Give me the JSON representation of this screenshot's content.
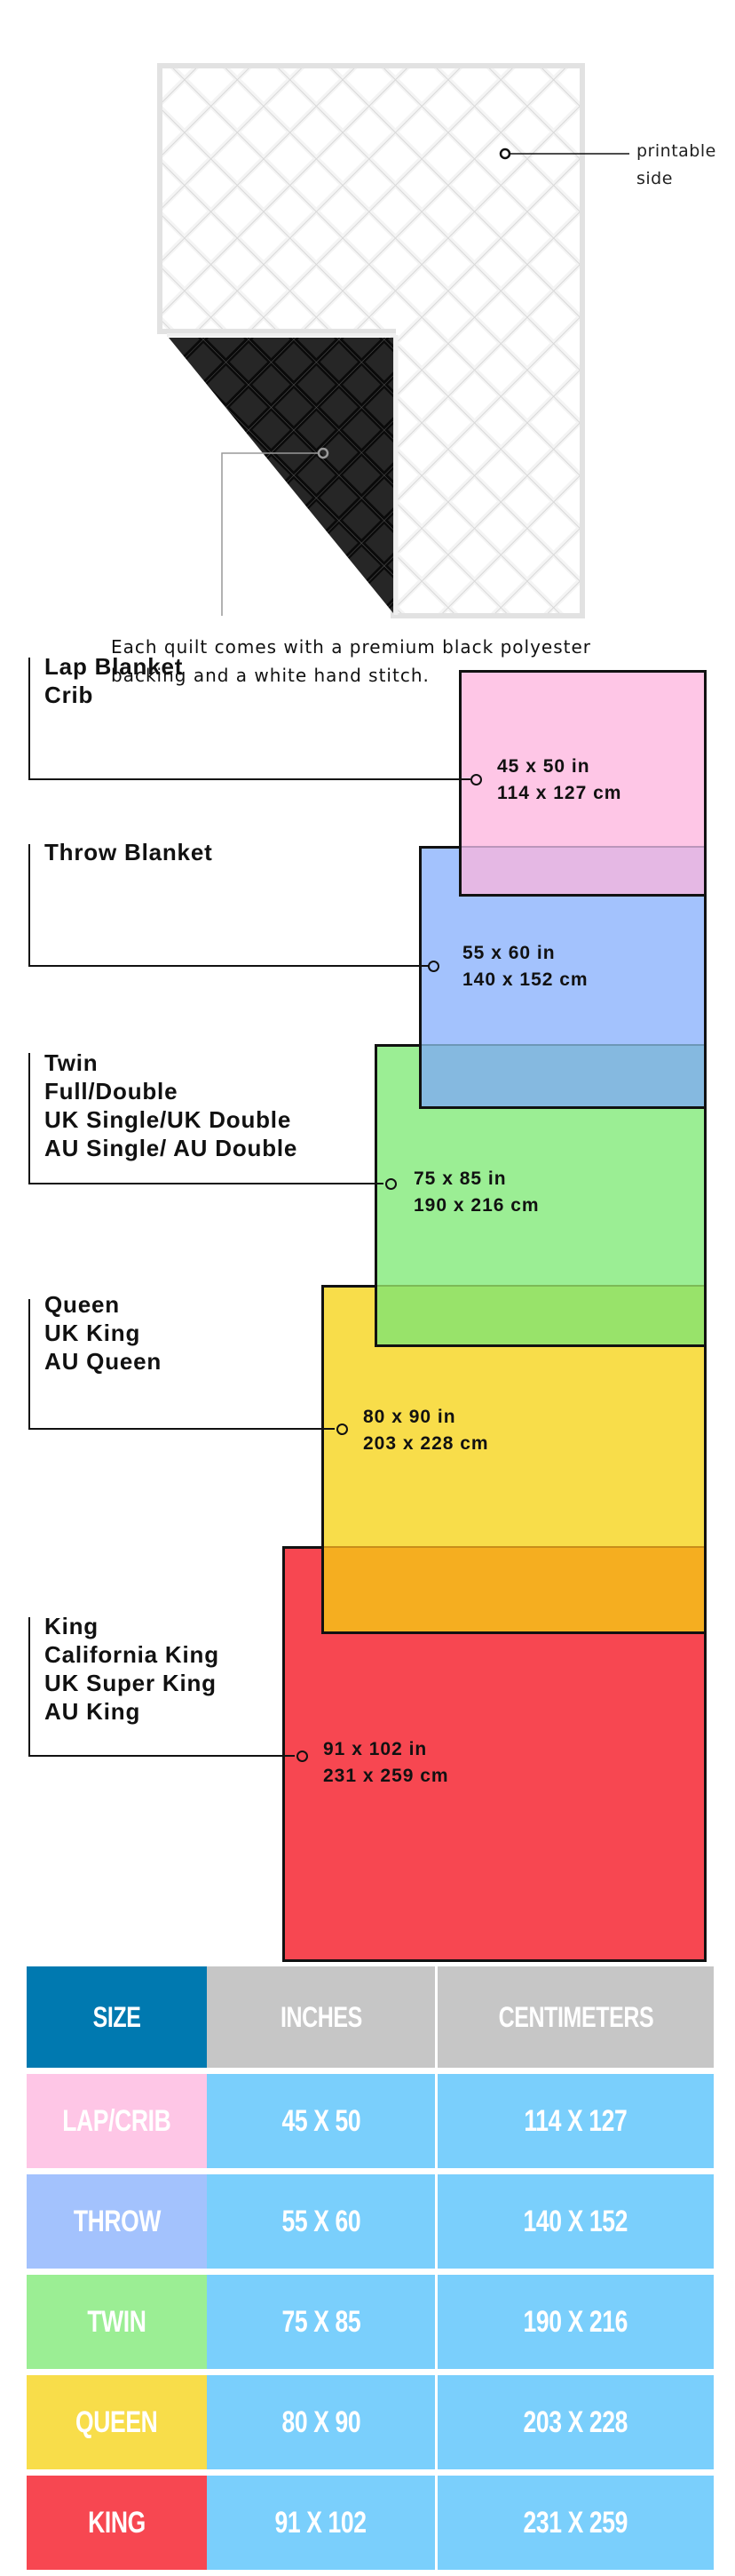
{
  "quilt": {
    "printable_label": "printable\nside",
    "caption_line1": "Each quilt comes with a premium black polyester",
    "caption_line2": "backing and a white hand stitch."
  },
  "sizes": [
    {
      "label": "Lap Blanket\nCrib",
      "inches": "45 x 50 in",
      "cm": "114 x 127 cm",
      "color": "#fec6e6"
    },
    {
      "label": "Throw Blanket",
      "inches": "55 x 60 in",
      "cm": "140 x 152 cm",
      "color": "#a3c2fd"
    },
    {
      "label": "Twin\nFull/Double\nUK Single/UK Double\nAU Single/ AU Double",
      "inches": "75 x 85 in",
      "cm": "190 x 216 cm",
      "color": "#9bee94"
    },
    {
      "label": "Queen\nUK King\nAU Queen",
      "inches": "80 x 90 in",
      "cm": "203 x 228 cm",
      "color": "#f8dd4a"
    },
    {
      "label": "King\nCalifornia King\nUK Super King\nAU King",
      "inches": "91 x 102 in",
      "cm": "231 x 259 cm",
      "color": "#f74751"
    }
  ],
  "overlap_colors": [
    "#e5b8e4",
    "#85b9e0",
    "#98e36a",
    "#f5ae20"
  ],
  "table": {
    "headers": [
      "SIZE",
      "INCHES",
      "CENTIMETERS"
    ],
    "header_colors": {
      "size": "#0079b0",
      "other": "#c6c6c6"
    },
    "cell_color": "#7acffc",
    "rows": [
      {
        "size": "LAP/CRIB",
        "inches": "45 X 50",
        "cm": "114 X 127",
        "color": "#fec6e6"
      },
      {
        "size": "THROW",
        "inches": "55 X 60",
        "cm": "140 X 152",
        "color": "#a3c2fd"
      },
      {
        "size": "TWIN",
        "inches": "75 X 85",
        "cm": "190 X 216",
        "color": "#9bee94"
      },
      {
        "size": "QUEEN",
        "inches": "80 X 90",
        "cm": "203 X 228",
        "color": "#f8dd4a"
      },
      {
        "size": "KING",
        "inches": "91 X 102",
        "cm": "231 X 259",
        "color": "#f74751"
      }
    ]
  }
}
